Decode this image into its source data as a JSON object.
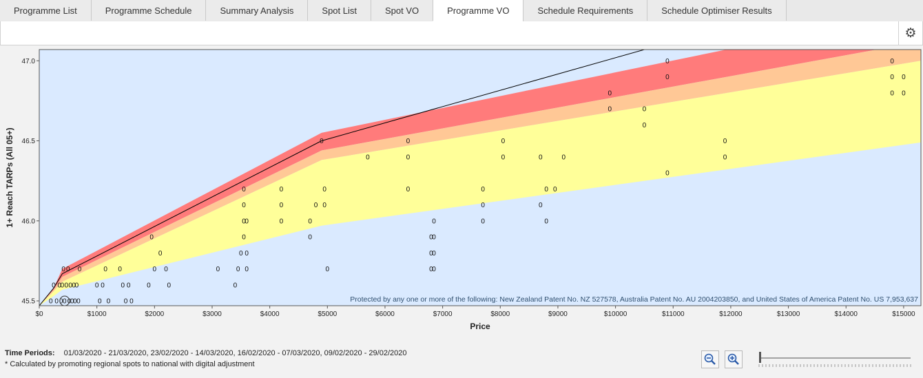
{
  "tabs": [
    {
      "label": "Programme List",
      "active": false
    },
    {
      "label": "Programme Schedule",
      "active": false
    },
    {
      "label": "Summary Analysis",
      "active": false
    },
    {
      "label": "Spot List",
      "active": false
    },
    {
      "label": "Spot VO",
      "active": false
    },
    {
      "label": "Programme VO",
      "active": true
    },
    {
      "label": "Schedule Requirements",
      "active": false
    },
    {
      "label": "Schedule Optimiser Results",
      "active": false
    }
  ],
  "toolbar": {
    "settings_icon": "gear-icon"
  },
  "chart_data": {
    "type": "scatter",
    "xlabel": "Price",
    "ylabel": "1+ Reach TARPs (All 05+)",
    "xlim": [
      0,
      15300
    ],
    "ylim": [
      45.47,
      47.07
    ],
    "xticks": [
      0,
      1000,
      2000,
      3000,
      4000,
      5000,
      6000,
      7000,
      8000,
      9000,
      10000,
      11000,
      12000,
      13000,
      14000,
      15000
    ],
    "xtick_labels": [
      "$0",
      "$1000",
      "$2000",
      "$3000",
      "$4000",
      "$5000",
      "$6000",
      "$7000",
      "$8000",
      "$9000",
      "$10000",
      "$11000",
      "$12000",
      "$13000",
      "$14000",
      "$15000"
    ],
    "yticks": [
      45.5,
      46.0,
      46.5,
      47.0
    ],
    "ytick_labels": [
      "45.5",
      "46.0",
      "46.5",
      "47.0"
    ],
    "point_label": "0",
    "frontier": {
      "x": [
        0,
        250,
        400,
        4900,
        15300
      ],
      "y": [
        45.47,
        45.58,
        45.7,
        46.55,
        47.32
      ]
    },
    "reference_line": {
      "x": [
        0,
        250,
        400,
        4900,
        10500
      ],
      "y": [
        45.47,
        45.58,
        45.67,
        46.5,
        47.07
      ]
    },
    "band_red_bottom": {
      "x": [
        0,
        250,
        400,
        4900,
        15300
      ],
      "y": [
        45.47,
        45.57,
        45.65,
        46.44,
        47.12
      ]
    },
    "band_orange_bottom": {
      "x": [
        0,
        250,
        400,
        4900,
        15300
      ],
      "y": [
        45.47,
        45.56,
        45.62,
        46.38,
        47.0
      ]
    },
    "band_yellow_bottom": {
      "x": [
        0,
        250,
        400,
        4900,
        15300
      ],
      "y": [
        45.47,
        45.53,
        45.57,
        45.97,
        46.49
      ]
    },
    "band_colors": {
      "red": "#ff7b7b",
      "orange": "#ffc896",
      "yellow": "#ffff99",
      "background": "#daeaff"
    },
    "highlight_point": {
      "x": 440,
      "y": 45.5
    },
    "points": [
      [
        200,
        45.5
      ],
      [
        250,
        45.6
      ],
      [
        300,
        45.5
      ],
      [
        350,
        45.6
      ],
      [
        380,
        45.5
      ],
      [
        400,
        45.6
      ],
      [
        420,
        45.7
      ],
      [
        440,
        45.5
      ],
      [
        470,
        45.6
      ],
      [
        500,
        45.7
      ],
      [
        520,
        45.5
      ],
      [
        540,
        45.6
      ],
      [
        570,
        45.5
      ],
      [
        600,
        45.6
      ],
      [
        620,
        45.5
      ],
      [
        650,
        45.6
      ],
      [
        680,
        45.5
      ],
      [
        700,
        45.7
      ],
      [
        1000,
        45.6
      ],
      [
        1050,
        45.5
      ],
      [
        1100,
        45.6
      ],
      [
        1150,
        45.7
      ],
      [
        1200,
        45.5
      ],
      [
        1400,
        45.7
      ],
      [
        1450,
        45.6
      ],
      [
        1500,
        45.5
      ],
      [
        1550,
        45.6
      ],
      [
        1600,
        45.5
      ],
      [
        1900,
        45.6
      ],
      [
        1950,
        45.9
      ],
      [
        2000,
        45.7
      ],
      [
        2100,
        45.8
      ],
      [
        2200,
        45.7
      ],
      [
        2250,
        45.6
      ],
      [
        3100,
        45.7
      ],
      [
        3400,
        45.6
      ],
      [
        3450,
        45.7
      ],
      [
        3500,
        45.8
      ],
      [
        3550,
        45.9
      ],
      [
        3550,
        46.0
      ],
      [
        3550,
        46.1
      ],
      [
        3550,
        46.2
      ],
      [
        3600,
        45.7
      ],
      [
        3600,
        45.8
      ],
      [
        3600,
        46.0
      ],
      [
        4200,
        46.0
      ],
      [
        4200,
        46.1
      ],
      [
        4200,
        46.2
      ],
      [
        4700,
        46.0
      ],
      [
        4700,
        45.9
      ],
      [
        4800,
        46.1
      ],
      [
        4900,
        46.5
      ],
      [
        4950,
        46.2
      ],
      [
        4950,
        46.1
      ],
      [
        5000,
        45.7
      ],
      [
        5700,
        46.4
      ],
      [
        6400,
        46.5
      ],
      [
        6400,
        46.4
      ],
      [
        6400,
        46.2
      ],
      [
        6800,
        45.7
      ],
      [
        6800,
        45.8
      ],
      [
        6800,
        45.9
      ],
      [
        6850,
        45.7
      ],
      [
        6850,
        45.8
      ],
      [
        6850,
        45.9
      ],
      [
        6850,
        46.0
      ],
      [
        7700,
        46.2
      ],
      [
        7700,
        46.1
      ],
      [
        7700,
        46.0
      ],
      [
        8050,
        46.5
      ],
      [
        8050,
        46.4
      ],
      [
        8700,
        46.1
      ],
      [
        8700,
        46.4
      ],
      [
        8800,
        46.2
      ],
      [
        8800,
        46.0
      ],
      [
        8950,
        46.2
      ],
      [
        9100,
        46.4
      ],
      [
        9900,
        46.8
      ],
      [
        9900,
        46.7
      ],
      [
        10500,
        46.7
      ],
      [
        10500,
        46.6
      ],
      [
        10900,
        47.0
      ],
      [
        10900,
        46.9
      ],
      [
        10900,
        46.3
      ],
      [
        11900,
        46.5
      ],
      [
        11900,
        46.4
      ],
      [
        14800,
        47.0
      ],
      [
        14800,
        46.9
      ],
      [
        14800,
        46.8
      ],
      [
        15000,
        46.9
      ],
      [
        15000,
        46.8
      ]
    ]
  },
  "patent_text": "Protected by any one or more of the following: New Zealand Patent No. NZ 527578, Australia Patent No. AU 2004203850, and United States of America Patent No. US 7,953,637",
  "footer": {
    "time_periods_label": "Time Periods:",
    "time_periods_value": "01/03/2020 - 21/03/2020, 23/02/2020 - 14/03/2020, 16/02/2020 - 07/03/2020, 09/02/2020 - 29/02/2020",
    "note": "* Calculated by promoting regional spots to national with digital adjustment",
    "zoom_out_icon": "zoom-out-icon",
    "zoom_in_icon": "zoom-in-icon",
    "zoom_level": 0.0
  }
}
